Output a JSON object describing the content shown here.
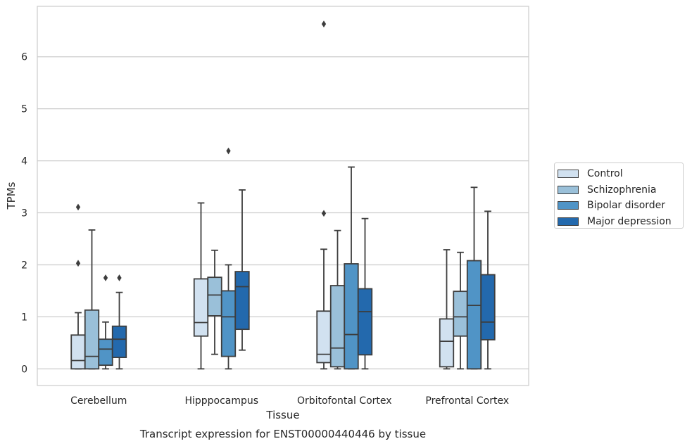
{
  "chart_data": {
    "type": "box",
    "title": "Transcript expression for ENST00000440446 by tissue",
    "xlabel": "Tissue",
    "ylabel": "TPMs",
    "ylim": [
      -0.32,
      6.97
    ],
    "yticks": [
      0,
      1,
      2,
      3,
      4,
      5,
      6
    ],
    "grid": true,
    "legend_position": "right",
    "categories": [
      "Cerebellum",
      "Hipppocampus",
      "Orbitofontal Cortex",
      "Prefrontal Cortex"
    ],
    "series": [
      {
        "name": "Control",
        "color": "#d1e1f0",
        "boxes": [
          {
            "whisker_low": 0.0,
            "q1": 0.0,
            "median": 0.16,
            "q3": 0.65,
            "whisker_high": 1.08,
            "outliers": [
              2.03,
              3.11
            ]
          },
          {
            "whisker_low": 0.0,
            "q1": 0.63,
            "median": 0.89,
            "q3": 1.73,
            "whisker_high": 3.19,
            "outliers": []
          },
          {
            "whisker_low": 0.0,
            "q1": 0.12,
            "median": 0.28,
            "q3": 1.11,
            "whisker_high": 2.3,
            "outliers": [
              2.99,
              6.63
            ]
          },
          {
            "whisker_low": 0.0,
            "q1": 0.04,
            "median": 0.53,
            "q3": 0.96,
            "whisker_high": 2.29,
            "outliers": []
          }
        ]
      },
      {
        "name": "Schizophrenia",
        "color": "#9ac0d9",
        "boxes": [
          {
            "whisker_low": 0.0,
            "q1": 0.0,
            "median": 0.24,
            "q3": 1.13,
            "whisker_high": 2.67,
            "outliers": []
          },
          {
            "whisker_low": 0.28,
            "q1": 1.02,
            "median": 1.42,
            "q3": 1.76,
            "whisker_high": 2.28,
            "outliers": []
          },
          {
            "whisker_low": 0.0,
            "q1": 0.04,
            "median": 0.4,
            "q3": 1.6,
            "whisker_high": 2.66,
            "outliers": []
          },
          {
            "whisker_low": 0.0,
            "q1": 0.63,
            "median": 1.0,
            "q3": 1.49,
            "whisker_high": 2.24,
            "outliers": []
          }
        ]
      },
      {
        "name": "Bipolar disorder",
        "color": "#5094c6",
        "boxes": [
          {
            "whisker_low": 0.0,
            "q1": 0.07,
            "median": 0.38,
            "q3": 0.57,
            "whisker_high": 0.9,
            "outliers": [
              1.75
            ]
          },
          {
            "whisker_low": 0.0,
            "q1": 0.24,
            "median": 1.0,
            "q3": 1.5,
            "whisker_high": 2.0,
            "outliers": [
              4.19
            ]
          },
          {
            "whisker_low": 0.0,
            "q1": 0.0,
            "median": 0.66,
            "q3": 2.02,
            "whisker_high": 3.88,
            "outliers": []
          },
          {
            "whisker_low": 0.0,
            "q1": 0.0,
            "median": 1.22,
            "q3": 2.08,
            "whisker_high": 3.49,
            "outliers": []
          }
        ]
      },
      {
        "name": "Major depression",
        "color": "#2369ad",
        "boxes": [
          {
            "whisker_low": 0.0,
            "q1": 0.22,
            "median": 0.57,
            "q3": 0.82,
            "whisker_high": 1.47,
            "outliers": [
              1.75
            ]
          },
          {
            "whisker_low": 0.36,
            "q1": 0.76,
            "median": 1.58,
            "q3": 1.87,
            "whisker_high": 3.44,
            "outliers": []
          },
          {
            "whisker_low": 0.0,
            "q1": 0.27,
            "median": 1.1,
            "q3": 1.54,
            "whisker_high": 2.89,
            "outliers": []
          },
          {
            "whisker_low": 0.0,
            "q1": 0.56,
            "median": 0.9,
            "q3": 1.81,
            "whisker_high": 3.03,
            "outliers": []
          }
        ]
      }
    ]
  }
}
